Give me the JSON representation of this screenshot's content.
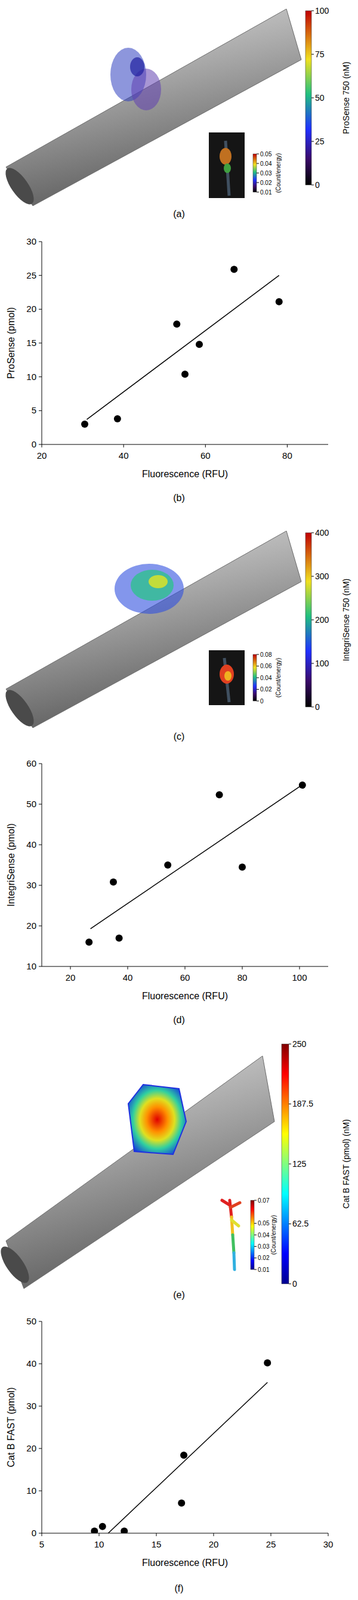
{
  "chart_data": [
    {
      "type": "image",
      "caption": "(a)",
      "colorbar": {
        "range": [
          0,
          100
        ],
        "ticks": [
          0,
          25,
          50,
          75,
          100
        ],
        "label": "ProSense 750 (nM)"
      },
      "inset_colorbar": {
        "range": [
          0.01,
          0.05
        ],
        "ticks": [
          0.01,
          0.02,
          0.03,
          0.04,
          0.05
        ],
        "label": "(Count/energy)"
      }
    },
    {
      "type": "scatter",
      "caption": "(b)",
      "x_label": "Fluorescence (RFU)",
      "y_label": "ProSense (pmol)",
      "x": [
        30.5,
        38.5,
        53,
        55,
        58.5,
        67,
        78
      ],
      "values": [
        3,
        3.8,
        17.8,
        10.4,
        14.8,
        25.9,
        21.1
      ],
      "fit_line": {
        "x": [
          31,
          78
        ],
        "values": [
          3.7,
          25
        ]
      },
      "xlim": [
        20,
        90
      ],
      "xticks": [
        20,
        40,
        60,
        80
      ],
      "ylim": [
        0,
        30
      ],
      "yticks": [
        0,
        5,
        10,
        15,
        20,
        25,
        30
      ],
      "color": "#000000",
      "marker": "circle"
    },
    {
      "type": "image",
      "caption": "(c)",
      "colorbar": {
        "range": [
          0,
          400
        ],
        "ticks": [
          0,
          100,
          200,
          300,
          400
        ],
        "label": "IntegriSense 750 (nM)"
      },
      "inset_colorbar": {
        "range": [
          0,
          0.08
        ],
        "ticks": [
          0,
          0.02,
          0.04,
          0.06,
          0.08
        ],
        "label": "(Count/energy)"
      }
    },
    {
      "type": "scatter",
      "caption": "(d)",
      "x_label": "Fluorescence (RFU)",
      "y_label": "IntegriSense (pmol)",
      "x": [
        26.5,
        35,
        37,
        54,
        72,
        80,
        101
      ],
      "values": [
        16,
        30.8,
        17,
        35,
        52.3,
        34.5,
        54.7
      ],
      "fit_line": {
        "x": [
          27,
          101
        ],
        "values": [
          19.3,
          54.8
        ]
      },
      "xlim": [
        10,
        110
      ],
      "xticks": [
        20,
        40,
        60,
        80,
        100
      ],
      "ylim": [
        10,
        60
      ],
      "yticks": [
        10,
        20,
        30,
        40,
        50,
        60
      ],
      "color": "#000000",
      "marker": "circle"
    },
    {
      "type": "image",
      "caption": "(e)",
      "colorbar": {
        "range": [
          0,
          250
        ],
        "ticks": [
          0,
          62.5,
          125,
          187.5,
          250
        ],
        "label": "Cat B FAST (pmol) (nM)"
      },
      "inset_colorbar": {
        "range": [
          0.01,
          0.07
        ],
        "ticks": [
          0.01,
          0.02,
          0.03,
          0.04,
          0.05,
          0.07
        ],
        "label": "(Count/energy)"
      }
    },
    {
      "type": "scatter",
      "caption": "(f)",
      "x_label": "Fluorescence (RFU)",
      "y_label": "Cat B FAST (pmol)",
      "x": [
        9.6,
        10.3,
        12.2,
        17.2,
        17.4,
        24.7
      ],
      "values": [
        0.5,
        1.6,
        0.5,
        7.1,
        18.4,
        40.2
      ],
      "fit_line": {
        "x": [
          10.8,
          24.7
        ],
        "values": [
          0,
          35.6
        ]
      },
      "xlim": [
        5,
        30
      ],
      "xticks": [
        5,
        10,
        15,
        20,
        25,
        30
      ],
      "ylim": [
        0,
        50
      ],
      "yticks": [
        0,
        10,
        20,
        30,
        40,
        50
      ],
      "color": "#000000",
      "marker": "circle"
    }
  ]
}
